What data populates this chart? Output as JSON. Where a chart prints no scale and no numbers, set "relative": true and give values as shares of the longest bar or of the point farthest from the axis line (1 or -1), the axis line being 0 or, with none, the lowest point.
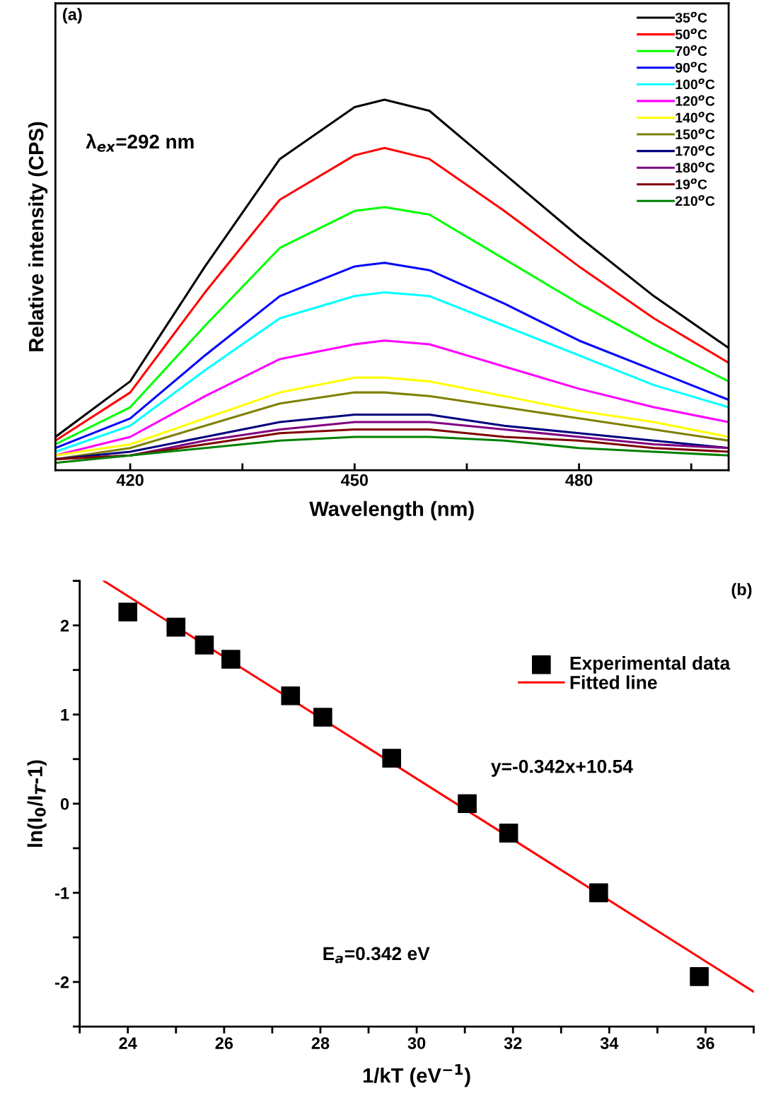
{
  "chart_data": [
    {
      "type": "line",
      "relative": true,
      "xlabel": "Wavelength (nm)",
      "ylabel": "Relative intensity (CPS)",
      "annotations": [
        "(a)",
        "λ$_{ex}$=292 nm"
      ],
      "x": [
        410,
        420,
        430,
        440,
        450,
        454,
        460,
        470,
        480,
        490,
        500
      ],
      "xlim": [
        410,
        500
      ],
      "xticks": [
        420,
        {
          "value": 435,
          "label": null
        },
        450,
        {
          "value": 465,
          "label": null
        },
        480,
        {
          "value": 495,
          "label": null
        }
      ],
      "legend": "top right",
      "grid": false,
      "line_style": "solid",
      "marker": "none",
      "series": [
        {
          "name": "35$^{o}$C",
          "color": "#000000",
          "values": [
            0.09,
            0.24,
            0.55,
            0.84,
            0.98,
            1.0,
            0.97,
            0.8,
            0.63,
            0.47,
            0.33
          ]
        },
        {
          "name": "50$^{o}$C",
          "color": "#ff0000",
          "values": [
            0.08,
            0.21,
            0.48,
            0.73,
            0.85,
            0.87,
            0.84,
            0.7,
            0.55,
            0.41,
            0.29
          ]
        },
        {
          "name": "70$^{o}$C",
          "color": "#00ff00",
          "values": [
            0.07,
            0.17,
            0.39,
            0.6,
            0.7,
            0.71,
            0.69,
            0.57,
            0.45,
            0.34,
            0.24
          ]
        },
        {
          "name": "90$^{o}$C",
          "color": "#0000ff",
          "values": [
            0.06,
            0.14,
            0.31,
            0.47,
            0.55,
            0.56,
            0.54,
            0.45,
            0.35,
            0.27,
            0.19
          ]
        },
        {
          "name": "100$^{o}$C",
          "color": "#00ffff",
          "values": [
            0.05,
            0.12,
            0.27,
            0.41,
            0.47,
            0.48,
            0.47,
            0.39,
            0.31,
            0.23,
            0.17
          ]
        },
        {
          "name": "120$^{o}$C",
          "color": "#ff00ff",
          "values": [
            0.04,
            0.09,
            0.2,
            0.3,
            0.34,
            0.35,
            0.34,
            0.28,
            0.22,
            0.17,
            0.13
          ]
        },
        {
          "name": "140$^{o}$C",
          "color": "#ffff00",
          "values": [
            0.04,
            0.07,
            0.14,
            0.21,
            0.25,
            0.25,
            0.24,
            0.2,
            0.16,
            0.13,
            0.09
          ]
        },
        {
          "name": "150$^{o}$C",
          "color": "#808000",
          "values": [
            0.03,
            0.06,
            0.12,
            0.18,
            0.21,
            0.21,
            0.2,
            0.17,
            0.14,
            0.11,
            0.08
          ]
        },
        {
          "name": "170$^{o}$C",
          "color": "#000080",
          "values": [
            0.03,
            0.05,
            0.09,
            0.13,
            0.15,
            0.15,
            0.15,
            0.12,
            0.1,
            0.08,
            0.06
          ]
        },
        {
          "name": "180$^{o}$C",
          "color": "#800080",
          "values": [
            0.03,
            0.04,
            0.08,
            0.11,
            0.13,
            0.13,
            0.13,
            0.11,
            0.09,
            0.07,
            0.06
          ]
        },
        {
          "name": "19$^{o}$C",
          "color": "#800000",
          "values": [
            0.03,
            0.04,
            0.07,
            0.1,
            0.11,
            0.11,
            0.11,
            0.09,
            0.08,
            0.06,
            0.05
          ]
        },
        {
          "name": "210$^{o}$C",
          "color": "#008000",
          "values": [
            0.02,
            0.04,
            0.06,
            0.08,
            0.09,
            0.09,
            0.09,
            0.08,
            0.06,
            0.05,
            0.04
          ]
        }
      ]
    },
    {
      "type": "scatter",
      "xlabel": "1/kT (eV$^{−1}$)",
      "ylabel": "ln(I$_{0}$/I$_{T}$-1)",
      "annotations": [
        "(b)",
        "y=-0.342x+10.54",
        "E$_{a}$=0.342 eV"
      ],
      "xlim": [
        23,
        37
      ],
      "xticks": [
        {
          "value": 23,
          "label": null
        },
        24,
        {
          "value": 25,
          "label": null
        },
        26,
        {
          "value": 27,
          "label": null
        },
        28,
        {
          "value": 29,
          "label": null
        },
        30,
        {
          "value": 31,
          "label": null
        },
        32,
        {
          "value": 33,
          "label": null
        },
        34,
        {
          "value": 35,
          "label": null
        },
        36,
        {
          "value": 37,
          "label": null
        }
      ],
      "ylim": [
        -2.5,
        2.5
      ],
      "yticks": [
        {
          "value": -2.5,
          "label": null
        },
        -2,
        {
          "value": -1.5,
          "label": null
        },
        -1,
        {
          "value": -0.5,
          "label": null
        },
        0,
        {
          "value": 0.5,
          "label": null
        },
        1,
        {
          "value": 1.5,
          "label": null
        },
        2,
        {
          "value": 2.5,
          "label": null
        }
      ],
      "legend": "right",
      "grid": false,
      "series": [
        {
          "name": "Experimental data",
          "type": "scatter",
          "marker": "square",
          "color": "#000000",
          "x": [
            24.0,
            25.0,
            25.59,
            26.14,
            27.38,
            28.05,
            29.48,
            31.05,
            31.91,
            33.78,
            35.87
          ],
          "values": [
            2.15,
            1.98,
            1.78,
            1.62,
            1.21,
            0.97,
            0.51,
            0.0,
            -0.33,
            -1.0,
            -1.94
          ]
        },
        {
          "name": "Fitted line",
          "type": "line",
          "marker": "none",
          "color": "#ff0000",
          "x": [
            23.5,
            37
          ],
          "values": [
            2.5,
            -2.11
          ]
        }
      ]
    }
  ]
}
